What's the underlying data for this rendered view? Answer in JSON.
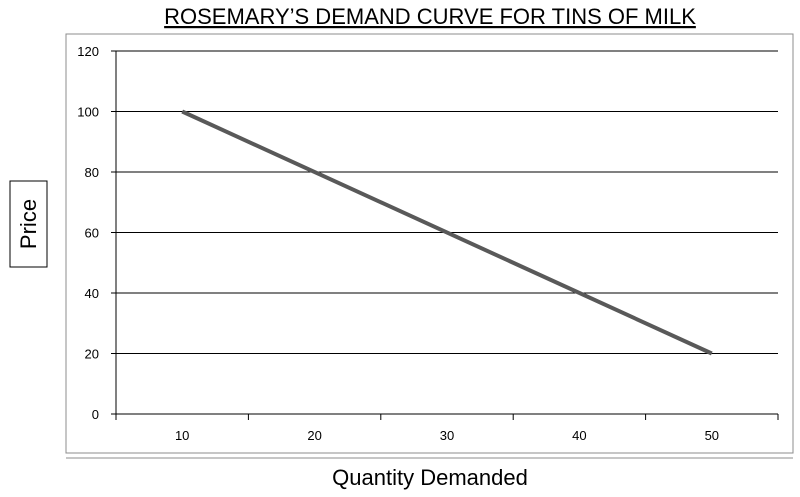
{
  "chart_data": {
    "type": "line",
    "title": "ROSEMARY’S DEMAND CURVE FOR TINS OF MILK",
    "xlabel": "Quantity Demanded",
    "ylabel": "Price",
    "x_ticks": [
      "10",
      "20",
      "30",
      "40",
      "50"
    ],
    "y_ticks": [
      "0",
      "20",
      "40",
      "60",
      "80",
      "100",
      "120"
    ],
    "ylim": [
      0,
      120
    ],
    "grid": true,
    "legend": "none",
    "series": [
      {
        "x": [
          10,
          50
        ],
        "y": [
          100,
          20
        ],
        "color": "#595959"
      }
    ]
  }
}
